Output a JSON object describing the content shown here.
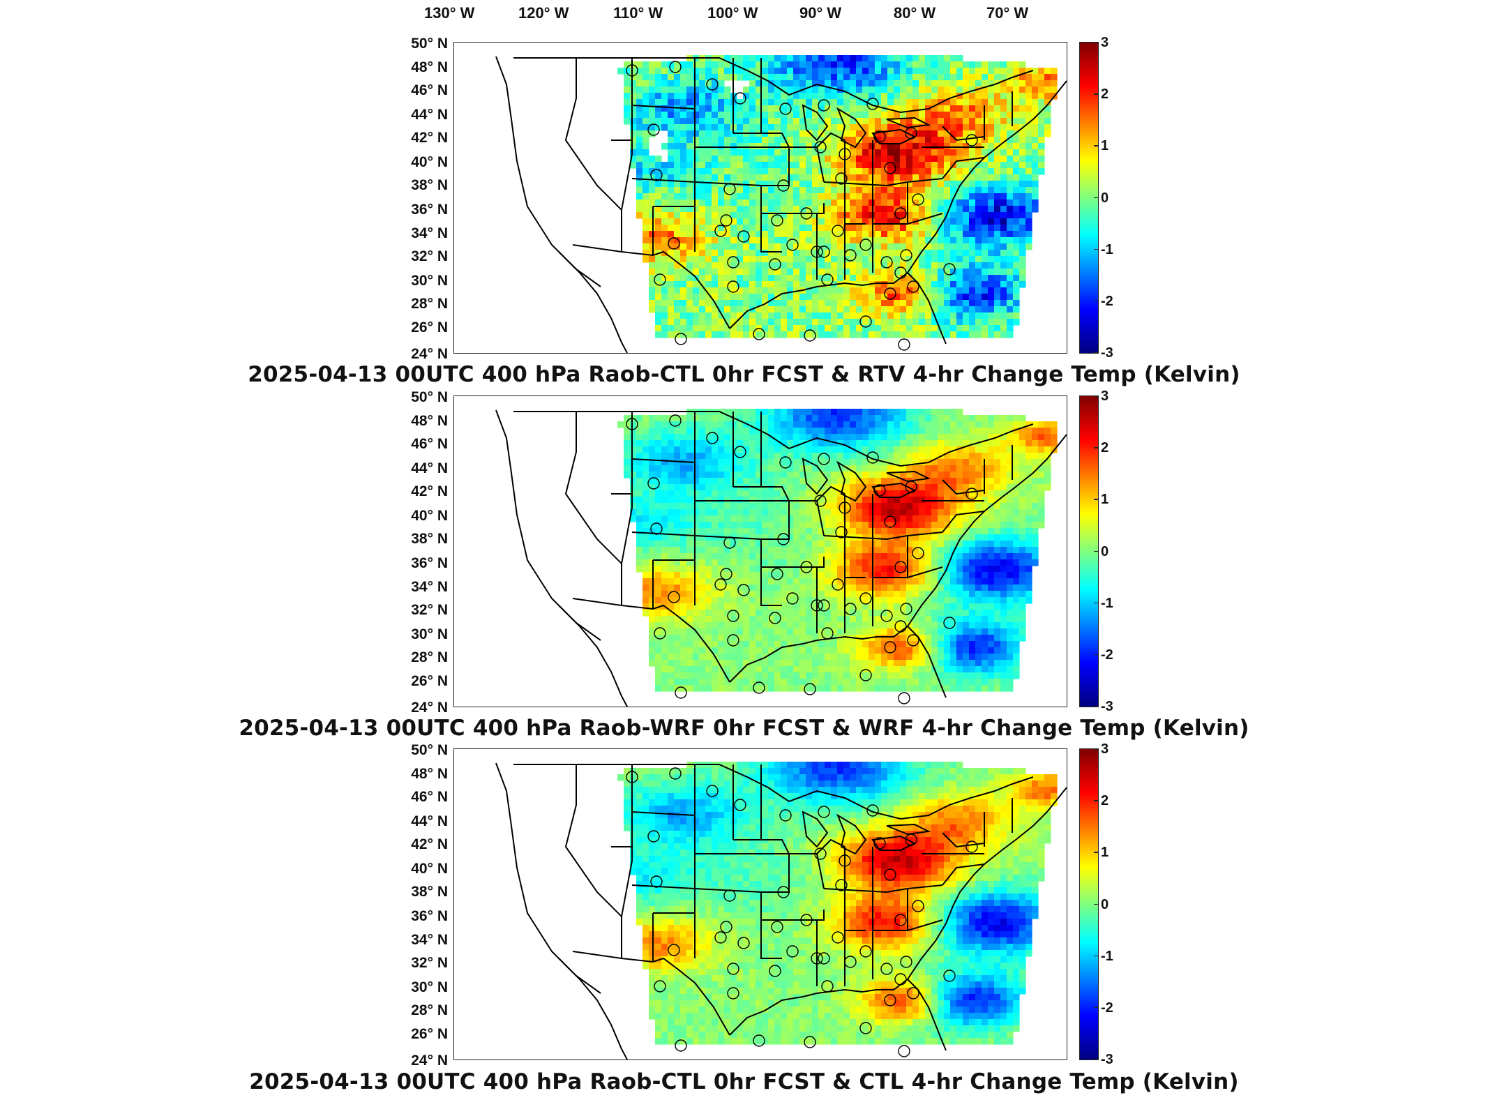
{
  "longitude_labels": [
    "130° W",
    "120° W",
    "110° W",
    "100° W",
    "90° W",
    "80° W",
    "70° W"
  ],
  "latitude_labels": [
    "50° N",
    "48° N",
    "46° N",
    "44° N",
    "42° N",
    "40° N",
    "38° N",
    "36° N",
    "34° N",
    "32° N",
    "30° N",
    "28° N",
    "26° N",
    "24° N"
  ],
  "colorbar_ticks": [
    "3",
    "2",
    "1",
    "0",
    "-1",
    "-2",
    "-3"
  ],
  "colorbar": {
    "min": -3,
    "max": 3,
    "colors": [
      "#000080",
      "#0000ff",
      "#0080ff",
      "#00ffff",
      "#80ff80",
      "#ffff00",
      "#ff8000",
      "#ff0000",
      "#800000"
    ]
  },
  "panels": [
    {
      "title": "2025-04-13 00UTC 400 hPa Raob-CTL 0hr FCST & RTV 4-hr Change Temp (Kelvin)"
    },
    {
      "title": "2025-04-13 00UTC 400 hPa Raob-WRF 0hr FCST & WRF 4-hr Change Temp (Kelvin)"
    },
    {
      "title": "2025-04-13 00UTC 400 hPa Raob-CTL 0hr FCST & CTL 4-hr Change Temp (Kelvin)"
    }
  ]
}
